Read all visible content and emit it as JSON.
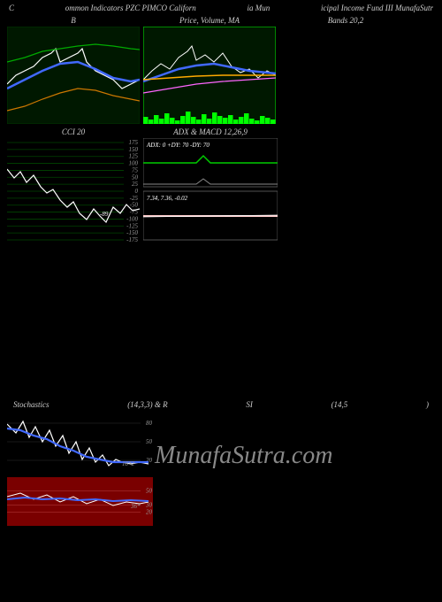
{
  "header": {
    "left": "C",
    "mid1": "ommon Indicators PZC PIMCO Californ",
    "mid2": "ia Mun",
    "mid3": "icipal Income Fund III MunafaSutr"
  },
  "watermark": "MunafaSutra.com",
  "charts": {
    "bollinger_left": {
      "title": "B",
      "width": 150,
      "height": 110,
      "bg": "#001800",
      "border": "#003300",
      "lines": {
        "white": {
          "color": "#ffffff",
          "width": 1.2,
          "pts": [
            [
              0,
              65
            ],
            [
              10,
              55
            ],
            [
              20,
              50
            ],
            [
              30,
              45
            ],
            [
              40,
              35
            ],
            [
              50,
              30
            ],
            [
              55,
              25
            ],
            [
              60,
              40
            ],
            [
              70,
              35
            ],
            [
              80,
              30
            ],
            [
              85,
              25
            ],
            [
              90,
              40
            ],
            [
              100,
              50
            ],
            [
              110,
              55
            ],
            [
              120,
              60
            ],
            [
              130,
              70
            ],
            [
              140,
              65
            ],
            [
              150,
              60
            ]
          ]
        },
        "blue": {
          "color": "#4169ff",
          "width": 2.5,
          "pts": [
            [
              0,
              70
            ],
            [
              20,
              60
            ],
            [
              40,
              50
            ],
            [
              60,
              42
            ],
            [
              80,
              40
            ],
            [
              100,
              48
            ],
            [
              120,
              58
            ],
            [
              140,
              62
            ],
            [
              150,
              60
            ]
          ]
        },
        "green": {
          "color": "#00aa00",
          "width": 1.2,
          "pts": [
            [
              0,
              40
            ],
            [
              20,
              35
            ],
            [
              40,
              28
            ],
            [
              60,
              25
            ],
            [
              80,
              22
            ],
            [
              100,
              20
            ],
            [
              120,
              22
            ],
            [
              140,
              25
            ],
            [
              150,
              26
            ]
          ]
        },
        "orange": {
          "color": "#cc7700",
          "width": 1.2,
          "pts": [
            [
              0,
              95
            ],
            [
              20,
              90
            ],
            [
              40,
              82
            ],
            [
              60,
              75
            ],
            [
              80,
              70
            ],
            [
              100,
              72
            ],
            [
              120,
              78
            ],
            [
              140,
              82
            ],
            [
              150,
              84
            ]
          ]
        }
      }
    },
    "price_ma": {
      "title": "Price, Volume, MA",
      "width": 150,
      "height": 110,
      "bg": "#001800",
      "border": "#00aa00",
      "volume_color": "#00ff00",
      "volume_heights": [
        8,
        5,
        10,
        6,
        12,
        7,
        4,
        9,
        14,
        8,
        5,
        11,
        6,
        13,
        9,
        7,
        10,
        5,
        8,
        12,
        6,
        4,
        9,
        7,
        5
      ],
      "lines": {
        "white": {
          "color": "#ffffff",
          "width": 1,
          "pts": [
            [
              0,
              60
            ],
            [
              10,
              50
            ],
            [
              20,
              42
            ],
            [
              30,
              48
            ],
            [
              40,
              35
            ],
            [
              50,
              28
            ],
            [
              55,
              22
            ],
            [
              60,
              38
            ],
            [
              70,
              32
            ],
            [
              80,
              40
            ],
            [
              90,
              30
            ],
            [
              100,
              45
            ],
            [
              110,
              52
            ],
            [
              120,
              48
            ],
            [
              130,
              58
            ],
            [
              140,
              50
            ],
            [
              150,
              55
            ]
          ]
        },
        "blue": {
          "color": "#4169ff",
          "width": 2.5,
          "pts": [
            [
              0,
              62
            ],
            [
              20,
              55
            ],
            [
              40,
              48
            ],
            [
              60,
              44
            ],
            [
              80,
              42
            ],
            [
              100,
              46
            ],
            [
              120,
              50
            ],
            [
              140,
              52
            ],
            [
              150,
              53
            ]
          ]
        },
        "orange": {
          "color": "#ffaa00",
          "width": 1.5,
          "pts": [
            [
              0,
              60
            ],
            [
              30,
              58
            ],
            [
              60,
              56
            ],
            [
              90,
              55
            ],
            [
              120,
              55
            ],
            [
              150,
              55
            ]
          ]
        },
        "magenta": {
          "color": "#ff66ff",
          "width": 1.2,
          "pts": [
            [
              0,
              75
            ],
            [
              30,
              70
            ],
            [
              60,
              65
            ],
            [
              90,
              62
            ],
            [
              120,
              60
            ],
            [
              150,
              58
            ]
          ]
        }
      }
    },
    "bands_right": {
      "title": "Bands 20,2",
      "width": 150,
      "height": 110,
      "bg": "#000000"
    },
    "cci": {
      "title": "CCI 20",
      "width": 150,
      "height": 120,
      "bg": "#000000",
      "grid_color": "#004400",
      "yticks": [
        175,
        150,
        125,
        100,
        75,
        50,
        25,
        0,
        -25,
        -50,
        -75,
        -100,
        -125,
        -150,
        -175
      ],
      "line": {
        "color": "#ffffff",
        "width": 1.2,
        "pts": [
          [
            0,
            35
          ],
          [
            8,
            45
          ],
          [
            15,
            38
          ],
          [
            22,
            50
          ],
          [
            30,
            42
          ],
          [
            38,
            55
          ],
          [
            45,
            62
          ],
          [
            52,
            58
          ],
          [
            60,
            70
          ],
          [
            68,
            78
          ],
          [
            75,
            72
          ],
          [
            82,
            85
          ],
          [
            90,
            92
          ],
          [
            98,
            80
          ],
          [
            105,
            88
          ],
          [
            112,
            95
          ],
          [
            120,
            78
          ],
          [
            128,
            85
          ],
          [
            135,
            75
          ],
          [
            142,
            82
          ],
          [
            150,
            80
          ]
        ]
      },
      "current_value": "-89",
      "value_pos": [
        105,
        88
      ]
    },
    "adx_macd": {
      "title": "ADX  & MACD 12,26,9",
      "adx_text": "ADX: 0    +DY: 70   -DY: 70",
      "macd_text": "7.34,  7.36,  -0.02",
      "width": 152,
      "height": 120,
      "bg": "#000000",
      "panel_border": "#666666",
      "adx_line_color": "#00cc00",
      "macd_line1_color": "#ffcccc",
      "macd_line2_color": "#ffffff"
    },
    "stoch_rsi": {
      "title_left": "Stochastics",
      "title_mid1": "(14,3,3) & R",
      "title_mid2": "SI",
      "title_mid3": "(14,5",
      "title_right": ")",
      "width": 165,
      "height": 130,
      "stoch_bg": "#000000",
      "stoch_grid": "#333333",
      "stoch_ticks": [
        80,
        50,
        20
      ],
      "stoch_white": {
        "color": "#ffffff",
        "width": 1.2,
        "pts": [
          [
            0,
            15
          ],
          [
            10,
            25
          ],
          [
            18,
            12
          ],
          [
            25,
            30
          ],
          [
            32,
            18
          ],
          [
            40,
            35
          ],
          [
            48,
            22
          ],
          [
            55,
            40
          ],
          [
            63,
            28
          ],
          [
            70,
            48
          ],
          [
            78,
            35
          ],
          [
            85,
            55
          ],
          [
            93,
            42
          ],
          [
            100,
            58
          ],
          [
            108,
            50
          ],
          [
            115,
            62
          ],
          [
            123,
            55
          ],
          [
            130,
            58
          ],
          [
            140,
            60
          ],
          [
            150,
            58
          ],
          [
            160,
            60
          ]
        ]
      },
      "stoch_blue": {
        "color": "#4169ff",
        "width": 2.2,
        "pts": [
          [
            0,
            20
          ],
          [
            15,
            22
          ],
          [
            30,
            28
          ],
          [
            45,
            32
          ],
          [
            60,
            40
          ],
          [
            75,
            45
          ],
          [
            90,
            52
          ],
          [
            105,
            55
          ],
          [
            120,
            58
          ],
          [
            135,
            58
          ],
          [
            150,
            58
          ],
          [
            160,
            58
          ]
        ]
      },
      "stoch_value": "18*2",
      "rsi_bg": "#7a0000",
      "rsi_grid": "#aa3333",
      "rsi_ticks": [
        50,
        30,
        20
      ],
      "rsi_white": {
        "color": "#ffffff",
        "width": 1,
        "pts": [
          [
            0,
            22
          ],
          [
            15,
            18
          ],
          [
            30,
            25
          ],
          [
            45,
            20
          ],
          [
            60,
            28
          ],
          [
            75,
            22
          ],
          [
            90,
            30
          ],
          [
            105,
            25
          ],
          [
            120,
            32
          ],
          [
            135,
            28
          ],
          [
            150,
            30
          ],
          [
            160,
            28
          ]
        ]
      },
      "rsi_blue": {
        "color": "#4169ff",
        "width": 2,
        "pts": [
          [
            0,
            25
          ],
          [
            20,
            23
          ],
          [
            40,
            25
          ],
          [
            60,
            24
          ],
          [
            80,
            26
          ],
          [
            100,
            25
          ],
          [
            120,
            27
          ],
          [
            140,
            26
          ],
          [
            160,
            27
          ]
        ]
      },
      "rsi_value": "36*"
    }
  }
}
